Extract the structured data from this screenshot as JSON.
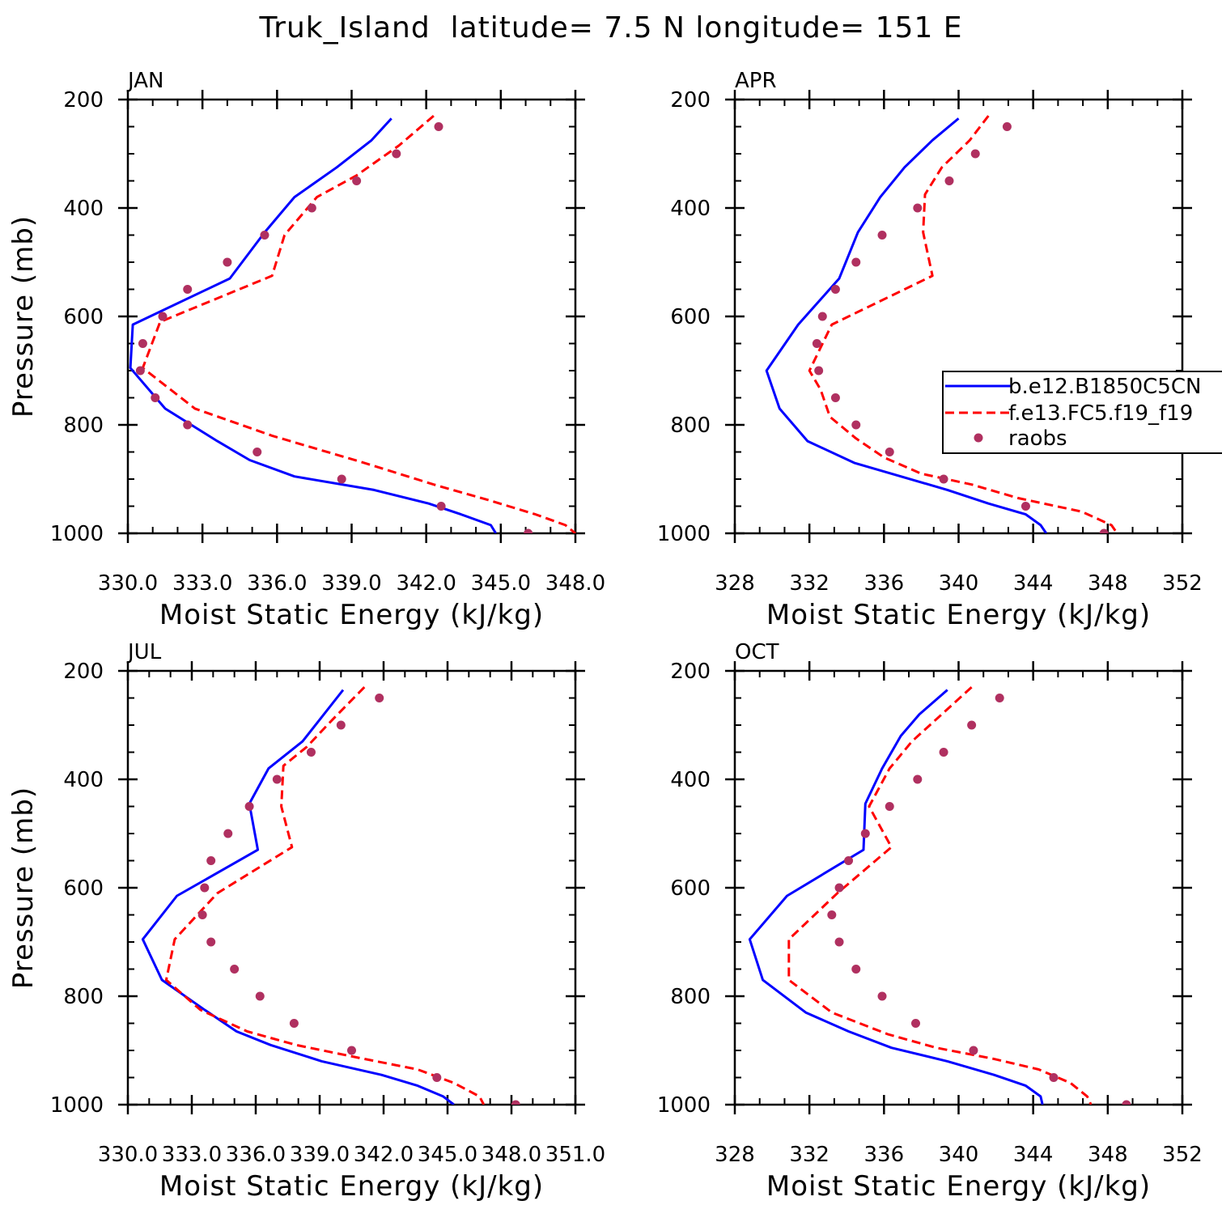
{
  "figure": {
    "title": "Truk_Island  latitude= 7.5 N longitude= 151 E"
  },
  "colors": {
    "model1": "#0000ff",
    "model2": "#ff0000",
    "raobs": "#b03060",
    "axes": "#000000"
  },
  "legend": {
    "panel": "APR",
    "entries": [
      {
        "label": "b.e12.B1850C5CN",
        "style": "solid-line",
        "color": "#0000ff"
      },
      {
        "label": "f.e13.FC5.f19_f19",
        "style": "dashed-line",
        "color": "#ff0000"
      },
      {
        "label": "raobs",
        "style": "dot",
        "color": "#b03060"
      }
    ]
  },
  "chart_data": [
    {
      "type": "line",
      "panel_label": "JAN",
      "xlabel": "Moist Static Energy (kJ/kg)",
      "ylabel": "Pressure (mb)",
      "xlim": [
        330,
        348
      ],
      "ylim": [
        1000,
        200
      ],
      "xticks": [
        330,
        333,
        336,
        339,
        342,
        345,
        348
      ],
      "xtick_labels": [
        "330.0",
        "333.0",
        "336.0",
        "339.0",
        "342.0",
        "345.0",
        "348.0"
      ],
      "yticks": [
        200,
        400,
        600,
        800,
        1000
      ],
      "ytick_labels": [
        "200",
        "400",
        "600",
        "800",
        "1000"
      ],
      "series": [
        {
          "name": "b.e12.B1850C5CN",
          "style": "solid",
          "x": [
            340.6,
            339.8,
            338.4,
            336.7,
            335.5,
            334.1,
            330.2,
            330.1,
            331.5,
            333.6,
            334.9,
            336.7,
            339.9,
            342.1,
            343.4,
            344.6,
            344.8
          ],
          "y": [
            235,
            275,
            325,
            380,
            445,
            530,
            615,
            695,
            770,
            830,
            865,
            895,
            920,
            945,
            965,
            985,
            1000
          ]
        },
        {
          "name": "f.e13.FC5.f19_f19",
          "style": "dashed",
          "x": [
            342.3,
            340.9,
            339.2,
            337.6,
            336.3,
            335.8,
            331.3,
            330.6,
            332.7,
            335.8,
            339.5,
            342.3,
            344.6,
            346.4,
            347.6,
            348.0
          ],
          "y": [
            230,
            285,
            340,
            380,
            450,
            525,
            610,
            695,
            770,
            820,
            870,
            910,
            940,
            965,
            985,
            1000
          ]
        },
        {
          "name": "raobs",
          "style": "dot",
          "x": [
            342.5,
            340.8,
            339.2,
            337.4,
            335.5,
            334.0,
            332.4,
            331.4,
            330.6,
            330.5,
            331.1,
            332.4,
            335.2,
            338.6,
            342.6,
            346.1
          ],
          "y": [
            250,
            300,
            350,
            400,
            450,
            500,
            550,
            600,
            650,
            700,
            750,
            800,
            850,
            900,
            950,
            1000
          ]
        }
      ]
    },
    {
      "type": "line",
      "panel_label": "APR",
      "xlabel": "Moist Static Energy (kJ/kg)",
      "ylabel": "",
      "xlim": [
        328,
        352
      ],
      "ylim": [
        1000,
        200
      ],
      "xticks": [
        328,
        332,
        336,
        340,
        344,
        348,
        352
      ],
      "xtick_labels": [
        "328",
        "332",
        "336",
        "340",
        "344",
        "348",
        "352"
      ],
      "yticks": [
        200,
        400,
        600,
        800,
        1000
      ],
      "ytick_labels": [
        "200",
        "400",
        "600",
        "800",
        "1000"
      ],
      "series": [
        {
          "name": "b.e12.B1850C5CN",
          "style": "solid",
          "x": [
            340.0,
            338.6,
            337.1,
            335.8,
            334.6,
            333.6,
            331.4,
            329.7,
            330.4,
            331.9,
            334.4,
            336.9,
            339.4,
            341.6,
            343.6,
            344.4,
            344.7
          ],
          "y": [
            235,
            275,
            325,
            380,
            445,
            530,
            615,
            700,
            770,
            830,
            870,
            895,
            920,
            945,
            965,
            985,
            1000
          ]
        },
        {
          "name": "f.e13.FC5.f19_f19",
          "style": "dashed",
          "x": [
            341.6,
            340.6,
            339.1,
            338.2,
            338.1,
            338.6,
            333.2,
            332.0,
            332.6,
            333.1,
            334.5,
            336.0,
            338.0,
            340.7,
            343.2,
            346.6,
            348.2,
            348.5
          ],
          "y": [
            230,
            275,
            325,
            375,
            445,
            525,
            615,
            700,
            735,
            785,
            825,
            860,
            890,
            910,
            935,
            960,
            985,
            1000
          ]
        },
        {
          "name": "raobs",
          "style": "dot",
          "x": [
            342.6,
            340.9,
            339.5,
            337.8,
            335.9,
            334.5,
            333.4,
            332.7,
            332.4,
            332.5,
            333.4,
            334.5,
            336.3,
            339.2,
            343.6,
            347.8
          ],
          "y": [
            250,
            300,
            350,
            400,
            450,
            500,
            550,
            600,
            650,
            700,
            750,
            800,
            850,
            900,
            950,
            1000
          ]
        }
      ]
    },
    {
      "type": "line",
      "panel_label": "JUL",
      "xlabel": "Moist Static Energy (kJ/kg)",
      "ylabel": "Pressure (mb)",
      "xlim": [
        330,
        351
      ],
      "ylim": [
        1000,
        200
      ],
      "xticks": [
        330,
        333,
        336,
        339,
        342,
        345,
        348,
        351
      ],
      "xtick_labels": [
        "330.0",
        "333.0",
        "336.0",
        "339.0",
        "342.0",
        "345.0",
        "348.0",
        "351.0"
      ],
      "yticks": [
        200,
        400,
        600,
        800,
        1000
      ],
      "ytick_labels": [
        "200",
        "400",
        "600",
        "800",
        "1000"
      ],
      "series": [
        {
          "name": "b.e12.B1850C5CN",
          "style": "solid",
          "x": [
            340.1,
            338.2,
            336.6,
            335.7,
            336.1,
            332.3,
            330.7,
            331.6,
            333.6,
            335.1,
            336.7,
            339.1,
            341.9,
            343.6,
            344.8,
            345.3
          ],
          "y": [
            235,
            330,
            380,
            445,
            530,
            615,
            695,
            770,
            825,
            865,
            890,
            920,
            945,
            965,
            985,
            1000
          ]
        },
        {
          "name": "f.e13.FC5.f19_f19",
          "style": "dashed",
          "x": [
            341.1,
            339.6,
            338.4,
            337.3,
            337.2,
            337.7,
            334.2,
            332.2,
            331.8,
            333.4,
            335.6,
            337.9,
            341.0,
            343.6,
            345.3,
            346.5,
            346.7
          ],
          "y": [
            230,
            290,
            340,
            375,
            450,
            525,
            610,
            695,
            770,
            825,
            865,
            890,
            915,
            935,
            960,
            985,
            1000
          ]
        },
        {
          "name": "raobs",
          "style": "dot",
          "x": [
            341.8,
            340.0,
            338.6,
            337.0,
            335.7,
            334.7,
            333.9,
            333.6,
            333.5,
            333.9,
            335.0,
            336.2,
            337.8,
            340.5,
            344.5,
            348.2
          ],
          "y": [
            250,
            300,
            350,
            400,
            450,
            500,
            550,
            600,
            650,
            700,
            750,
            800,
            850,
            900,
            950,
            1000
          ]
        }
      ]
    },
    {
      "type": "line",
      "panel_label": "OCT",
      "xlabel": "Moist Static Energy (kJ/kg)",
      "ylabel": "",
      "xlim": [
        328,
        352
      ],
      "ylim": [
        1000,
        200
      ],
      "xticks": [
        328,
        332,
        336,
        340,
        344,
        348,
        352
      ],
      "xtick_labels": [
        "328",
        "332",
        "336",
        "340",
        "344",
        "348",
        "352"
      ],
      "yticks": [
        200,
        400,
        600,
        800,
        1000
      ],
      "ytick_labels": [
        "200",
        "400",
        "600",
        "800",
        "1000"
      ],
      "series": [
        {
          "name": "b.e12.B1850C5CN",
          "style": "solid",
          "x": [
            339.4,
            337.9,
            336.9,
            335.9,
            335.0,
            334.9,
            330.8,
            328.8,
            329.5,
            331.8,
            334.1,
            336.4,
            339.4,
            341.9,
            343.6,
            344.4,
            344.5
          ],
          "y": [
            235,
            280,
            320,
            380,
            445,
            530,
            615,
            695,
            770,
            830,
            865,
            895,
            920,
            945,
            965,
            985,
            1000
          ]
        },
        {
          "name": "f.e13.FC5.f19_f19",
          "style": "dashed",
          "x": [
            340.7,
            339.1,
            337.5,
            336.3,
            335.2,
            336.4,
            333.5,
            330.9,
            330.9,
            333.2,
            336.2,
            338.8,
            341.8,
            344.3,
            346.0,
            346.9,
            347.1
          ],
          "y": [
            230,
            280,
            330,
            380,
            450,
            525,
            610,
            695,
            770,
            830,
            870,
            895,
            915,
            935,
            960,
            985,
            1000
          ]
        },
        {
          "name": "raobs",
          "style": "dot",
          "x": [
            342.2,
            340.7,
            339.2,
            337.8,
            336.3,
            335.0,
            334.1,
            333.6,
            333.2,
            333.6,
            334.5,
            335.9,
            337.7,
            340.8,
            345.1,
            349.0
          ],
          "y": [
            250,
            300,
            350,
            400,
            450,
            500,
            550,
            600,
            650,
            700,
            750,
            800,
            850,
            900,
            950,
            1000
          ]
        }
      ]
    }
  ]
}
